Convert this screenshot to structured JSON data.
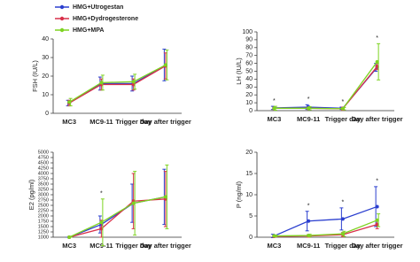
{
  "chart_data": [
    {
      "type": "line",
      "ylabel": "FSH (IU/L)",
      "legend": "top-left",
      "categories": [
        "MC3",
        "MC9-11",
        "Trigger day",
        "Day after trigger"
      ],
      "ylim": [
        0,
        40
      ],
      "yticks": [
        0,
        10,
        20,
        30,
        40
      ],
      "series": [
        {
          "name": "HMG+Utrogestan",
          "color": "#2b3fcf",
          "values": [
            5.5,
            16,
            16,
            26
          ],
          "errors": [
            1.5,
            3.5,
            4,
            8.5
          ]
        },
        {
          "name": "HMG+Dydrogesterone",
          "color": "#d8304a",
          "values": [
            5.5,
            15.5,
            15.5,
            25.5
          ],
          "errors": [
            1.5,
            3,
            3,
            7
          ]
        },
        {
          "name": "HMG+MPA",
          "color": "#7ed321",
          "values": [
            6,
            16.5,
            17,
            26
          ],
          "errors": [
            2,
            4,
            4,
            8
          ]
        }
      ]
    },
    {
      "type": "line",
      "ylabel": "LH (IU/L)",
      "categories": [
        "MC3",
        "MC9-11",
        "Trigger day",
        "Day after trigger"
      ],
      "ylim": [
        0,
        100
      ],
      "yticks": [
        0,
        10,
        20,
        30,
        40,
        50,
        60,
        70,
        80,
        90,
        100
      ],
      "significance": [
        "*",
        "*",
        "*",
        "*"
      ],
      "series": [
        {
          "color": "#2b3fcf",
          "values": [
            3.5,
            4.5,
            3,
            55
          ],
          "errors": [
            2,
            3,
            1.5,
            5
          ]
        },
        {
          "color": "#d8304a",
          "values": [
            3,
            3,
            2.5,
            56
          ],
          "errors": [
            1.5,
            1.5,
            2,
            4
          ]
        },
        {
          "color": "#7ed321",
          "values": [
            3,
            3,
            2.5,
            62
          ],
          "errors": [
            2.5,
            2,
            1.5,
            23
          ]
        }
      ]
    },
    {
      "type": "line",
      "ylabel": "E2 (pg/ml)",
      "categories": [
        "MC3",
        "MC9-11",
        "Trigger day",
        "Day after trigger"
      ],
      "ylim": [
        1000,
        5000
      ],
      "yticks": [
        1000,
        1250,
        1500,
        1750,
        2000,
        2250,
        2500,
        2750,
        3000,
        3250,
        3500,
        3750,
        4000,
        4250,
        4500,
        4750,
        5000
      ],
      "significance": [
        null,
        "*",
        null,
        null
      ],
      "series": [
        {
          "color": "#2b3fcf",
          "values": [
            1000,
            1600,
            2600,
            2900
          ],
          "errors": [
            0,
            400,
            900,
            1300
          ]
        },
        {
          "color": "#d8304a",
          "values": [
            1000,
            1400,
            2700,
            2800
          ],
          "errors": [
            0,
            400,
            1300,
            1300
          ]
        },
        {
          "color": "#7ed321",
          "values": [
            1000,
            1700,
            2600,
            2900
          ],
          "errors": [
            0,
            1100,
            1500,
            1500
          ]
        }
      ]
    },
    {
      "type": "line",
      "ylabel": "P (ng/ml)",
      "categories": [
        "MC3",
        "MC9-11",
        "Trigger day",
        "Day after trigger"
      ],
      "ylim": [
        0,
        20
      ],
      "yticks": [
        0,
        5,
        10,
        15,
        20
      ],
      "significance": [
        null,
        "*",
        "*",
        "*"
      ],
      "series": [
        {
          "color": "#2b3fcf",
          "values": [
            0.3,
            3.8,
            4.3,
            7.2
          ],
          "errors": [
            0.4,
            2.3,
            2.6,
            4.7
          ]
        },
        {
          "color": "#d8304a",
          "values": [
            0.2,
            0.3,
            0.6,
            3
          ],
          "errors": [
            0.2,
            0.3,
            0.5,
            1
          ]
        },
        {
          "color": "#7ed321",
          "values": [
            0.3,
            0.4,
            0.8,
            4
          ],
          "errors": [
            0.2,
            0.3,
            0.6,
            1.5
          ]
        }
      ]
    }
  ]
}
